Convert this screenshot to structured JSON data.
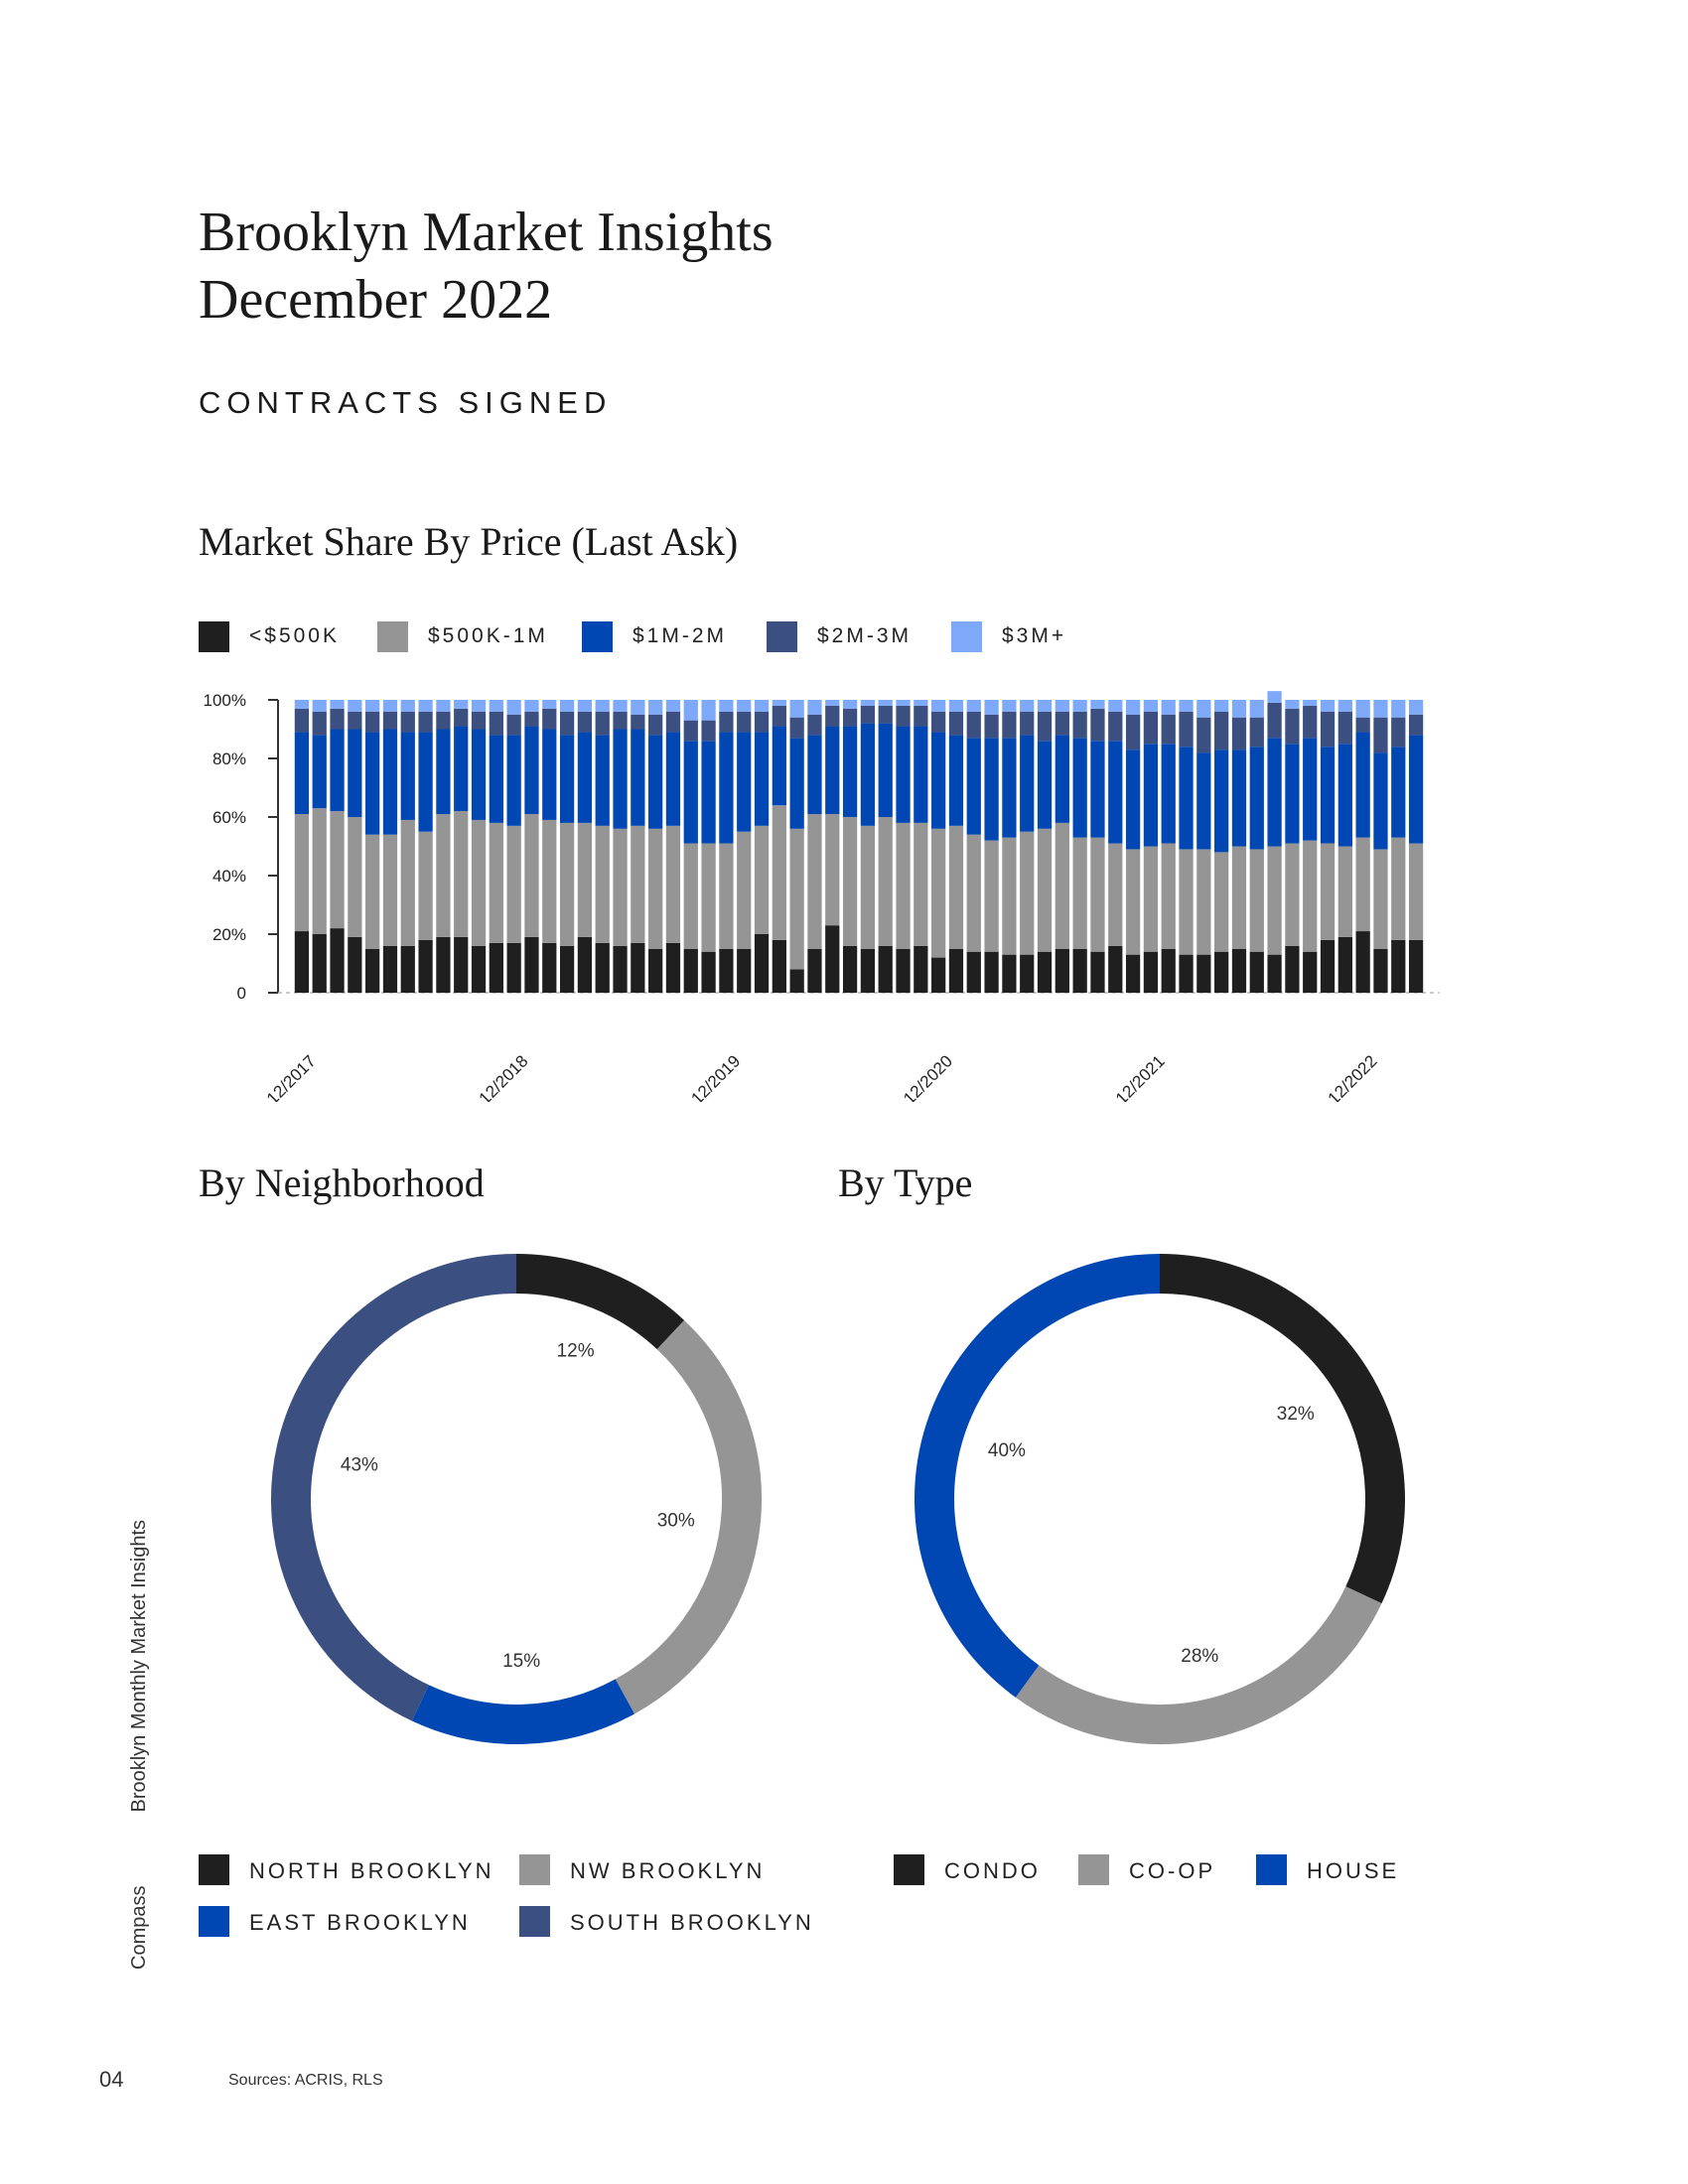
{
  "header": {
    "title_line1": "Brooklyn Market Insights",
    "title_line2": "December 2022",
    "section": "CONTRACTS SIGNED"
  },
  "colors": {
    "black": "#1f1f1f",
    "gray": "#959595",
    "blue": "#0047b3",
    "navy": "#3b5080",
    "light_blue": "#7ea8f8"
  },
  "chart_data": [
    {
      "type": "bar",
      "stacked": true,
      "title": "Market Share By Price (Last Ask)",
      "legend": [
        "<$500K",
        "$500K-1M",
        "$1M-2M",
        "$2M-3M",
        "$3M+"
      ],
      "y_ticks": [
        "100%",
        "80%",
        "60%",
        "40%",
        "20%",
        "0"
      ],
      "ylim": [
        0,
        100
      ],
      "x_tick_labels": [
        "12/2017",
        "12/2018",
        "12/2019",
        "12/2020",
        "12/2021",
        "12/2022"
      ],
      "x_tick_index": [
        0,
        12,
        24,
        36,
        48,
        60
      ],
      "series": [
        {
          "name": "<$500K",
          "values": [
            21,
            20,
            22,
            19,
            15,
            16,
            16,
            18,
            19,
            19,
            16,
            17,
            17,
            19,
            17,
            16,
            19,
            17,
            16,
            17,
            15,
            17,
            15,
            14,
            15,
            15,
            20,
            18,
            8,
            15,
            23,
            16,
            15,
            16,
            15,
            16,
            12,
            15,
            14,
            14,
            13,
            13,
            14,
            15,
            15,
            14,
            16,
            13,
            14,
            15,
            13,
            13,
            14,
            15,
            14,
            13,
            16,
            14,
            18,
            19,
            21,
            15,
            18,
            18
          ]
        },
        {
          "name": "$500K-1M",
          "values": [
            40,
            43,
            40,
            41,
            39,
            38,
            43,
            37,
            42,
            43,
            43,
            41,
            40,
            42,
            42,
            42,
            39,
            40,
            40,
            40,
            41,
            40,
            36,
            37,
            36,
            40,
            37,
            46,
            48,
            46,
            38,
            44,
            42,
            44,
            43,
            42,
            44,
            42,
            40,
            38,
            40,
            42,
            42,
            43,
            38,
            39,
            35,
            36,
            36,
            36,
            36,
            36,
            34,
            35,
            35,
            37,
            35,
            38,
            33,
            31,
            32,
            34,
            35,
            33
          ]
        },
        {
          "name": "$1M-2M",
          "values": [
            28,
            25,
            28,
            30,
            35,
            36,
            30,
            34,
            29,
            29,
            31,
            30,
            31,
            30,
            31,
            30,
            31,
            31,
            34,
            33,
            32,
            32,
            35,
            35,
            38,
            34,
            32,
            27,
            31,
            27,
            30,
            31,
            35,
            32,
            33,
            33,
            33,
            31,
            33,
            35,
            34,
            33,
            30,
            30,
            34,
            33,
            35,
            34,
            35,
            34,
            35,
            33,
            35,
            33,
            35,
            37,
            34,
            35,
            33,
            35,
            36,
            33,
            31,
            37
          ]
        },
        {
          "name": "$2M-3M",
          "values": [
            8,
            8,
            7,
            6,
            7,
            6,
            7,
            7,
            6,
            6,
            6,
            8,
            7,
            5,
            7,
            8,
            7,
            8,
            6,
            5,
            7,
            7,
            7,
            7,
            7,
            7,
            7,
            7,
            7,
            7,
            7,
            6,
            6,
            6,
            7,
            7,
            7,
            8,
            9,
            8,
            9,
            8,
            10,
            8,
            9,
            11,
            10,
            12,
            11,
            10,
            12,
            12,
            13,
            11,
            10,
            12,
            12,
            11,
            12,
            11,
            5,
            12,
            10,
            7
          ]
        },
        {
          "name": "$3M+",
          "values": [
            3,
            4,
            3,
            4,
            4,
            4,
            4,
            4,
            4,
            3,
            4,
            4,
            5,
            4,
            3,
            4,
            4,
            4,
            4,
            5,
            5,
            4,
            7,
            7,
            4,
            4,
            4,
            2,
            6,
            5,
            2,
            3,
            2,
            2,
            2,
            2,
            4,
            4,
            4,
            5,
            4,
            4,
            4,
            4,
            4,
            3,
            4,
            5,
            4,
            5,
            4,
            6,
            4,
            6,
            6,
            4,
            3,
            2,
            4,
            4,
            6,
            6,
            6,
            5
          ]
        }
      ]
    },
    {
      "type": "pie",
      "donut": true,
      "title": "By Neighborhood",
      "labels": [
        "NORTH BROOKLYN",
        "NW BROOKLYN",
        "EAST BROOKLYN",
        "SOUTH BROOKLYN"
      ],
      "values": [
        12,
        30,
        15,
        43
      ],
      "value_labels": [
        "12%",
        "30%",
        "15%",
        "43%"
      ]
    },
    {
      "type": "pie",
      "donut": true,
      "title": "By Type",
      "labels": [
        "CONDO",
        "CO-OP",
        "HOUSE"
      ],
      "values": [
        32,
        28,
        40
      ],
      "value_labels": [
        "32%",
        "28%",
        "40%"
      ]
    }
  ],
  "footer": {
    "side_brand": "Compass",
    "side_title": "Brooklyn Monthly Market Insights",
    "page_number": "04",
    "sources": "Sources: ACRIS, RLS"
  }
}
